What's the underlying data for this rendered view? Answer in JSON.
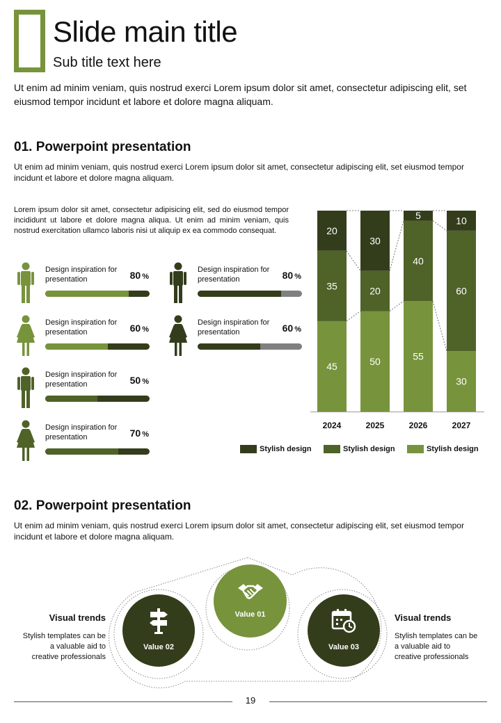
{
  "header": {
    "title": "Slide main title",
    "subtitle": "Sub title text here",
    "intro": "Ut enim ad minim veniam, quis nostrud exerci  Lorem ipsum dolor sit amet, consectetur adipiscing elit, set eiusmod tempor incidunt et labore et dolore magna aliquam."
  },
  "section1": {
    "title": "01. Powerpoint presentation",
    "body": "Ut enim ad minim veniam, quis nostrud exerci  Lorem ipsum dolor sit amet, consectetur adipiscing elit, set eiusmod tempor incidunt et labore et dolore magna aliquam.",
    "paragraph": "Lorem ipsum dolor sit amet, consectetur adipisicing elit, sed do eiusmod tempor incididunt ut labore et dolore magna aliqua. Ut enim ad minim veniam, quis nostrud exercitation ullamco laboris nisi ut aliquip ex ea commodo consequat.",
    "people": [
      {
        "label": "Design inspiration for presentation",
        "value": 80,
        "unit": "%",
        "gender": "male",
        "icon_color": "#77933c",
        "fill_color": "#77933c",
        "track_color": "#333d1c"
      },
      {
        "label": "Design inspiration for presentation",
        "value": 80,
        "unit": "%",
        "gender": "male",
        "icon_color": "#333d1c",
        "fill_color": "#333d1c",
        "track_color": "#808080"
      },
      {
        "label": "Design inspiration for presentation",
        "value": 60,
        "unit": "%",
        "gender": "female",
        "icon_color": "#77933c",
        "fill_color": "#77933c",
        "track_color": "#333d1c"
      },
      {
        "label": "Design inspiration for presentation",
        "value": 60,
        "unit": "%",
        "gender": "female",
        "icon_color": "#333d1c",
        "fill_color": "#333d1c",
        "track_color": "#808080"
      },
      {
        "label": "Design inspiration for presentation",
        "value": 50,
        "unit": "%",
        "gender": "male",
        "icon_color": "#4f6228",
        "fill_color": "#4f6228",
        "track_color": "#333d1c"
      },
      {
        "label": "Design inspiration for presentation",
        "value": 70,
        "unit": "%",
        "gender": "female",
        "icon_color": "#4f6228",
        "fill_color": "#4f6228",
        "track_color": "#333d1c"
      }
    ]
  },
  "chart_data": {
    "type": "bar",
    "stacked": true,
    "categories": [
      "2024",
      "2025",
      "2026",
      "2027"
    ],
    "series": [
      {
        "name": "Stylish design",
        "values": [
          20,
          30,
          5,
          10
        ],
        "color": "#333d1c"
      },
      {
        "name": "Stylish design",
        "values": [
          35,
          20,
          40,
          60
        ],
        "color": "#4f6228"
      },
      {
        "name": "Stylish design",
        "values": [
          45,
          50,
          55,
          30
        ],
        "color": "#77933c"
      }
    ],
    "ylim": [
      0,
      100
    ],
    "legend": "bottom",
    "grid": false
  },
  "section2": {
    "title": "02. Powerpoint presentation",
    "body": "Ut enim ad minim veniam, quis nostrud exerci  Lorem ipsum dolor sit amet, consectetur adipiscing elit, set eiusmod tempor incidunt et labore et dolore magna aliquam.",
    "left": {
      "title": "Visual trends",
      "body": "Stylish templates can be a valuable aid to creative professionals"
    },
    "right": {
      "title": "Visual trends",
      "body": "Stylish templates can be a valuable aid to creative professionals"
    },
    "values": [
      {
        "label": "Value 01",
        "icon": "handshake-icon",
        "color": "#77933c"
      },
      {
        "label": "Value 02",
        "icon": "signpost-icon",
        "color": "#333d1c"
      },
      {
        "label": "Value 03",
        "icon": "calendar-clock-icon",
        "color": "#333d1c"
      }
    ]
  },
  "footer": {
    "page_number": "19"
  }
}
